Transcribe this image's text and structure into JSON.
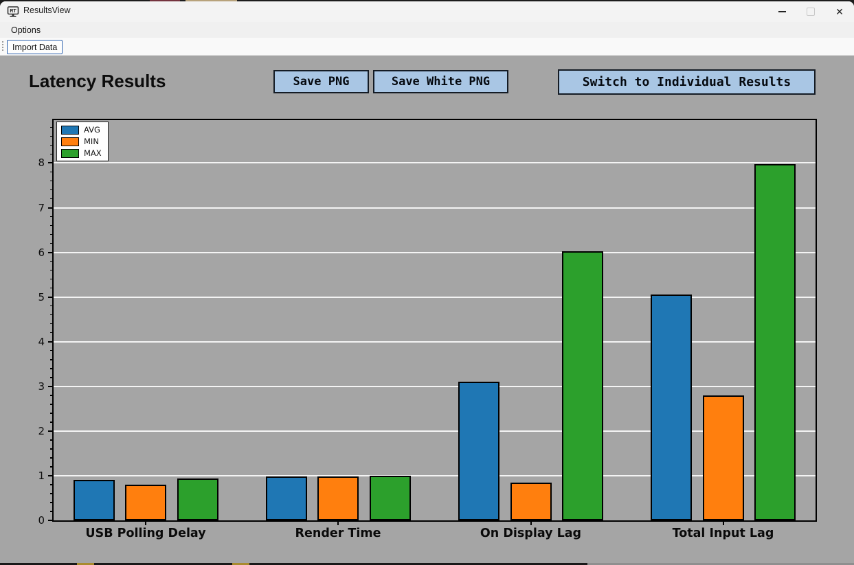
{
  "window": {
    "title": "ResultsView"
  },
  "menubar": {
    "items": [
      {
        "label": "Options"
      }
    ]
  },
  "toolbar": {
    "import_button_label": "Import Data"
  },
  "header": {
    "title": "Latency Results",
    "save_png_label": "Save PNG",
    "save_white_png_label": "Save White PNG",
    "switch_label": "Switch to Individual Results"
  },
  "chart_data": {
    "type": "bar",
    "title": "",
    "xlabel": "",
    "ylabel": "",
    "categories": [
      "USB Polling Delay",
      "Render Time",
      "On Display Lag",
      "Total Input Lag"
    ],
    "series": [
      {
        "name": "AVG",
        "color": "#1f77b4",
        "values": [
          0.91,
          0.99,
          3.11,
          5.06
        ]
      },
      {
        "name": "MIN",
        "color": "#ff7f0e",
        "values": [
          0.8,
          0.98,
          0.85,
          2.8
        ]
      },
      {
        "name": "MAX",
        "color": "#2ca02c",
        "values": [
          0.93,
          1.0,
          6.02,
          7.97
        ]
      }
    ],
    "ylim": [
      0,
      8.96
    ],
    "yticks": [
      0,
      1,
      2,
      3,
      4,
      5,
      6,
      7,
      8
    ],
    "minor_tick_step": 0.2,
    "grid": true,
    "gridline_color": "#f4f4f4",
    "legend_position": "upper-left",
    "plot_background": "#a5a5a5",
    "bar_edge_color": "#000000"
  }
}
